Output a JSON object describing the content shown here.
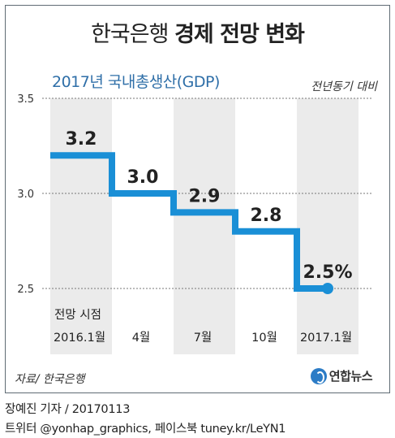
{
  "header": {
    "title_light": "한국은행",
    "title_bold": "경제 전망 변화"
  },
  "subtitle": "2017년 국내총생산(GDP)",
  "unit": "전년동기 대비",
  "source": "자료/ 한국은행",
  "logo": {
    "text": "연합뉴스",
    "icon": "yonhap-logo-icon"
  },
  "credits": {
    "line1": "장예진 기자 / 20170113",
    "line2": "트위터 @yonhap_graphics, 페이스북 tuney.kr/LeYN1"
  },
  "chart_data": {
    "type": "line",
    "style": "step",
    "ylim": [
      2.5,
      3.5
    ],
    "yticks": [
      "3.5",
      "3.0",
      "2.5"
    ],
    "grid": true,
    "axis_header": "전망 시점",
    "categories": [
      "2016.1월",
      "4월",
      "7월",
      "10월",
      "2017.1월"
    ],
    "values": [
      3.2,
      3.0,
      2.9,
      2.8,
      2.5
    ],
    "data_labels": [
      "3.2",
      "3.0",
      "2.9",
      "2.8",
      "2.5%"
    ],
    "colors": {
      "line": "#1a8fd6",
      "band": "#ebebeb",
      "grid": "#777777"
    }
  }
}
